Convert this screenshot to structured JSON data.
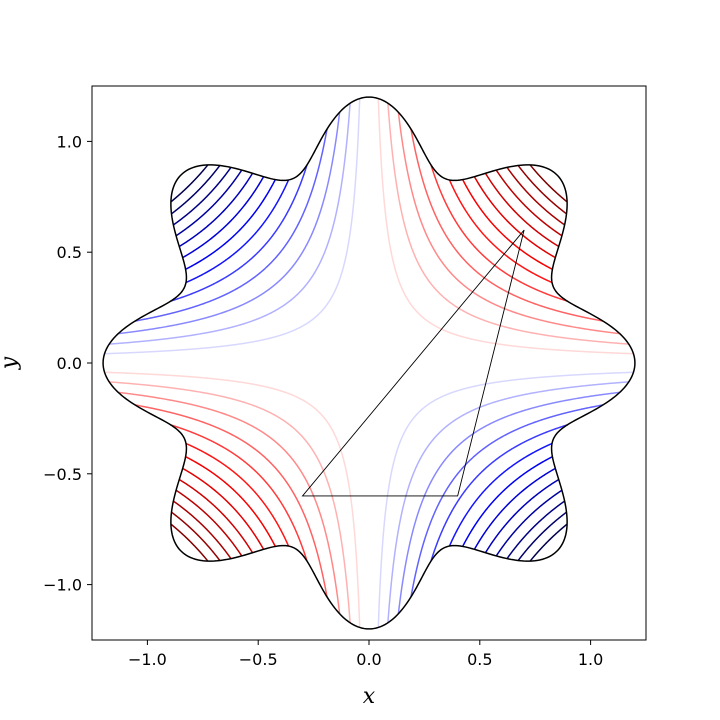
{
  "chart_data": {
    "type": "contour",
    "title": "",
    "xlabel": "x",
    "ylabel": "y",
    "xlim": [
      -1.25,
      1.25
    ],
    "ylim": [
      -1.25,
      1.25
    ],
    "xticks": [
      -1.0,
      -0.5,
      0.0,
      0.5,
      1.0
    ],
    "yticks": [
      -1.0,
      -0.5,
      0.0,
      0.5,
      1.0
    ],
    "xtick_labels": [
      "−1.0",
      "−0.5",
      "0.0",
      "0.5",
      "1.0"
    ],
    "ytick_labels": [
      "−1.0",
      "−0.5",
      "0.0",
      "0.5",
      "1.0"
    ],
    "grid": false,
    "colormap": "seismic",
    "field": "x*y",
    "contour_levels": [
      -0.65,
      -0.6,
      -0.55,
      -0.5,
      -0.45,
      -0.4,
      -0.35,
      -0.3,
      -0.25,
      -0.2,
      -0.15,
      -0.1,
      -0.05,
      0.05,
      0.1,
      0.15,
      0.2,
      0.25,
      0.3,
      0.35,
      0.4,
      0.45,
      0.5,
      0.55,
      0.6,
      0.65
    ],
    "boundary": {
      "shape": "star",
      "lobes": 8,
      "mean_radius": 1.05,
      "amplitude": 0.15
    },
    "triangle": [
      [
        -0.3,
        -0.6
      ],
      [
        0.4,
        -0.6
      ],
      [
        0.7,
        0.6
      ]
    ]
  }
}
